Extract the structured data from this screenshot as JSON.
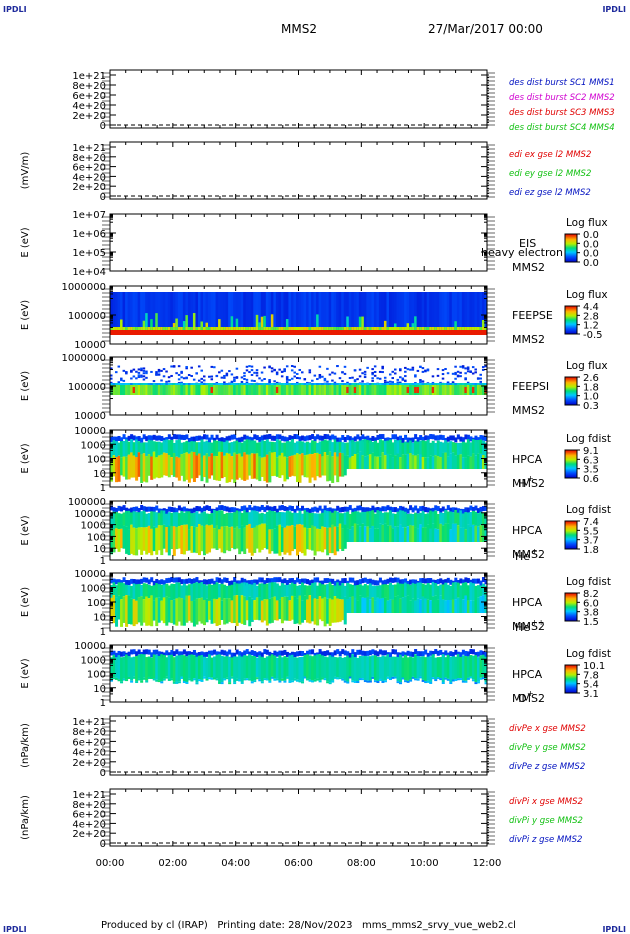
{
  "corners": {
    "tl": "IPDLI",
    "tr": "IPDLI",
    "bl": "IPDLI",
    "br": "IPDLI"
  },
  "header": {
    "spacecraft": "MMS2",
    "date": "27/Mar/2017 00:00"
  },
  "footer": "Produced by cl (IRAP)   Printing date: 28/Nov/2023   mms_mms2_srvy_vue_web2.cl",
  "colors": {
    "red": "#e00000",
    "magenta": "#d000d0",
    "green": "#10c010",
    "blue": "#0010c0"
  },
  "chart_data": [
    {
      "id": "p1",
      "type": "line",
      "ylabel": "",
      "yticks": [
        "1e+21",
        "8e+20",
        "6e+20",
        "4e+20",
        "2e+20",
        "0"
      ],
      "x": [
        "00:00",
        "02:00",
        "04:00",
        "06:00",
        "08:00",
        "10:00",
        "12:00"
      ],
      "legend": [
        {
          "text": "des dist burst SC1 MMS1",
          "color": "#0010c0"
        },
        {
          "text": "des dist burst SC2 MMS2",
          "color": "#d000d0"
        },
        {
          "text": "des dist burst SC3 MMS3",
          "color": "#e00000"
        },
        {
          "text": "des dist burst SC4 MMS4",
          "color": "#10c010"
        }
      ]
    },
    {
      "id": "p2",
      "type": "line",
      "ylabel": "(mV/m)",
      "yticks": [
        "1e+21",
        "8e+20",
        "6e+20",
        "4e+20",
        "2e+20",
        "0"
      ],
      "legend": [
        {
          "text": "edi ex gse l2 MMS2",
          "color": "#e00000"
        },
        {
          "text": "edi ey gse l2 MMS2",
          "color": "#10c010"
        },
        {
          "text": "edi ez gse l2 MMS2",
          "color": "#0010c0"
        }
      ]
    },
    {
      "id": "p3",
      "type": "heatmap",
      "ylabel": "E (eV)",
      "yticks": [
        "1e+07",
        "1e+06",
        "1e+05",
        "1e+04"
      ],
      "labels": [
        "EIS",
        "MMS2"
      ],
      "overlay": "heavy electron to",
      "cb_title": "Log flux",
      "cb_ticks": [
        "0.0",
        "0.0",
        "0.0",
        "0.0"
      ],
      "empty": true
    },
    {
      "id": "p4",
      "type": "heatmap",
      "ylabel": "E (eV)",
      "yticks": [
        "1000000",
        "100000",
        "10000"
      ],
      "labels": [
        "FEEPSE",
        "MMS2"
      ],
      "cb_title": "Log flux",
      "cb_ticks": [
        "4.4",
        "2.8",
        "1.2",
        "-0.5"
      ]
    },
    {
      "id": "p5",
      "type": "heatmap",
      "ylabel": "E (eV)",
      "yticks": [
        "1000000",
        "100000",
        "10000"
      ],
      "labels": [
        "FEEPSI",
        "MMS2"
      ],
      "cb_title": "Log flux",
      "cb_ticks": [
        "2.6",
        "1.8",
        "1.0",
        "0.3"
      ]
    },
    {
      "id": "p6",
      "type": "heatmap",
      "ylabel": "E (eV)",
      "yticks": [
        "10000",
        "1000",
        "100",
        "10",
        "1"
      ],
      "labels": [
        "HPCA",
        "MMS2"
      ],
      "species": "H",
      "sup": "+",
      "cb_title": "Log fdist",
      "cb_ticks": [
        "9.1",
        "6.3",
        "3.5",
        "0.6"
      ]
    },
    {
      "id": "p7",
      "type": "heatmap",
      "ylabel": "E (eV)",
      "yticks": [
        "100000",
        "10000",
        "1000",
        "100",
        "10",
        "1"
      ],
      "labels": [
        "HPCA",
        "MMS2"
      ],
      "species": "He",
      "sup": "+",
      "cb_title": "Log fdist",
      "cb_ticks": [
        "7.4",
        "5.5",
        "3.7",
        "1.8"
      ]
    },
    {
      "id": "p8",
      "type": "heatmap",
      "ylabel": "E (eV)",
      "yticks": [
        "10000",
        "1000",
        "100",
        "10",
        "1"
      ],
      "labels": [
        "HPCA",
        "MMS2"
      ],
      "species": "He",
      "sup": "++",
      "cb_title": "Log fdist",
      "cb_ticks": [
        "8.2",
        "6.0",
        "3.8",
        "1.5"
      ]
    },
    {
      "id": "p9",
      "type": "heatmap",
      "ylabel": "E (eV)",
      "yticks": [
        "10000",
        "1000",
        "100",
        "10",
        "1"
      ],
      "labels": [
        "HPCA",
        "MMS2"
      ],
      "species": "O",
      "sup": "+",
      "cb_title": "Log fdist",
      "cb_ticks": [
        "10.1",
        "7.8",
        "5.4",
        "3.1"
      ]
    },
    {
      "id": "p10",
      "type": "line",
      "ylabel": "(nPa/km)",
      "yticks": [
        "1e+21",
        "8e+20",
        "6e+20",
        "4e+20",
        "2e+20",
        "0"
      ],
      "legend": [
        {
          "text": "divPe x gse MMS2",
          "color": "#e00000"
        },
        {
          "text": "divPe y gse MMS2",
          "color": "#10c010"
        },
        {
          "text": "divPe z gse MMS2",
          "color": "#0010c0"
        }
      ]
    },
    {
      "id": "p11",
      "type": "line",
      "ylabel": "(nPa/km)",
      "yticks": [
        "1e+21",
        "8e+20",
        "6e+20",
        "4e+20",
        "2e+20",
        "0"
      ],
      "legend": [
        {
          "text": "divPi x gse MMS2",
          "color": "#e00000"
        },
        {
          "text": "divPi y gse MMS2",
          "color": "#10c010"
        },
        {
          "text": "divPi z gse MMS2",
          "color": "#0010c0"
        }
      ]
    }
  ]
}
